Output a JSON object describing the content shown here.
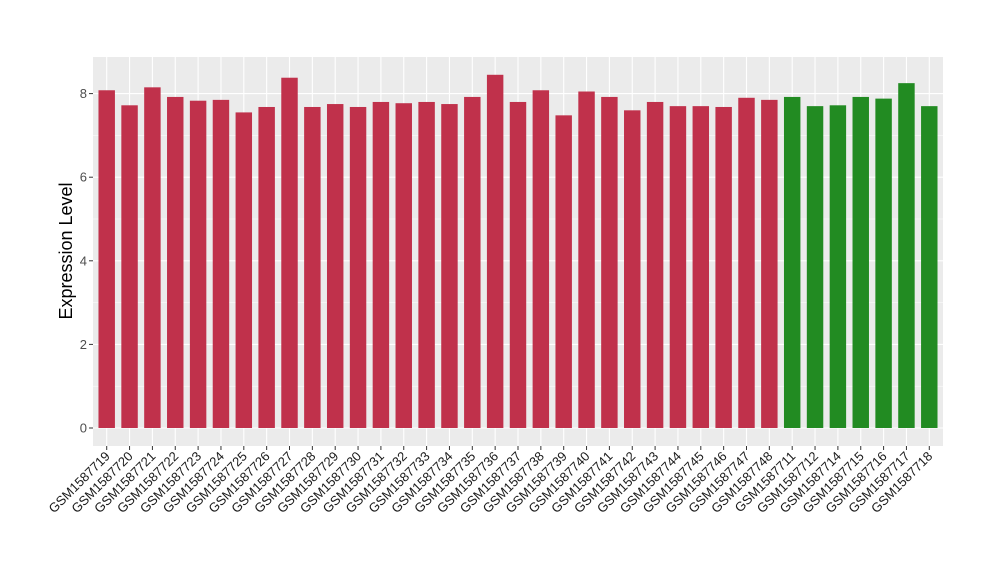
{
  "chart_data": {
    "type": "bar",
    "title": "",
    "xlabel": "",
    "ylabel": "Expression Level",
    "ylim": [
      0,
      8.8
    ],
    "yticks": [
      0,
      2,
      4,
      6,
      8
    ],
    "grid": true,
    "legend": "none",
    "background_color": "#ebebeb",
    "grid_color": "#ffffff",
    "categories": [
      "GSM1587719",
      "GSM1587720",
      "GSM1587721",
      "GSM1587722",
      "GSM1587723",
      "GSM1587724",
      "GSM1587725",
      "GSM1587726",
      "GSM1587727",
      "GSM1587728",
      "GSM1587729",
      "GSM1587730",
      "GSM1587731",
      "GSM1587732",
      "GSM1587733",
      "GSM1587734",
      "GSM1587735",
      "GSM1587736",
      "GSM1587737",
      "GSM1587738",
      "GSM1587739",
      "GSM1587740",
      "GSM1587741",
      "GSM1587742",
      "GSM1587743",
      "GSM1587744",
      "GSM1587745",
      "GSM1587746",
      "GSM1587747",
      "GSM1587748",
      "GSM1587711",
      "GSM1587712",
      "GSM1587714",
      "GSM1587715",
      "GSM1587716",
      "GSM1587717",
      "GSM1587718"
    ],
    "values": [
      8.08,
      7.72,
      8.15,
      7.92,
      7.83,
      7.85,
      7.55,
      7.68,
      8.38,
      7.68,
      7.75,
      7.68,
      7.8,
      7.77,
      7.8,
      7.75,
      7.92,
      8.45,
      7.8,
      8.08,
      7.48,
      8.05,
      7.92,
      7.6,
      7.8,
      7.7,
      7.7,
      7.68,
      7.9,
      7.85,
      7.92,
      7.7,
      7.72,
      7.92,
      7.88,
      8.25,
      7.7
    ],
    "bar_colors": [
      "#c0314b",
      "#c0314b",
      "#c0314b",
      "#c0314b",
      "#c0314b",
      "#c0314b",
      "#c0314b",
      "#c0314b",
      "#c0314b",
      "#c0314b",
      "#c0314b",
      "#c0314b",
      "#c0314b",
      "#c0314b",
      "#c0314b",
      "#c0314b",
      "#c0314b",
      "#c0314b",
      "#c0314b",
      "#c0314b",
      "#c0314b",
      "#c0314b",
      "#c0314b",
      "#c0314b",
      "#c0314b",
      "#c0314b",
      "#c0314b",
      "#c0314b",
      "#c0314b",
      "#c0314b",
      "#228b22",
      "#228b22",
      "#228b22",
      "#228b22",
      "#228b22",
      "#228b22",
      "#228b22"
    ]
  }
}
